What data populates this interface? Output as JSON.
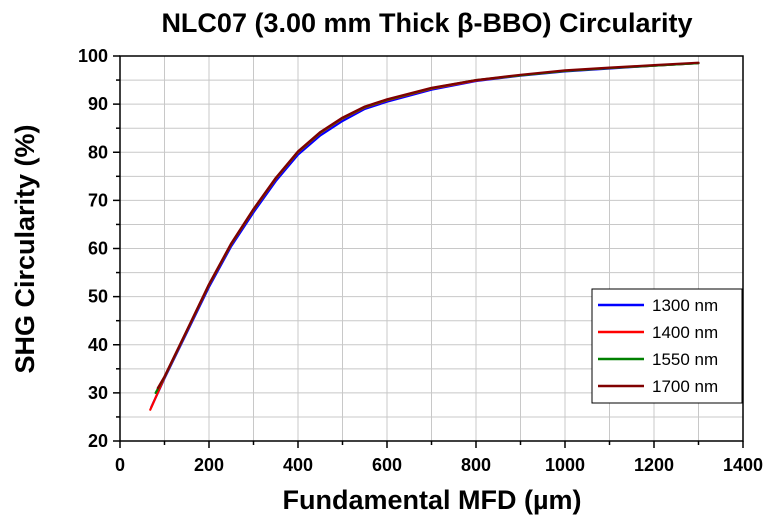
{
  "chart_data": {
    "type": "line",
    "title": "NLC07 (3.00 mm Thick β-BBO) Circularity",
    "xlabel": "Fundamental MFD (µm)",
    "ylabel": "SHG Circularity (%)",
    "xlim": [
      0,
      1400
    ],
    "ylim": [
      20,
      100
    ],
    "xticks": [
      0,
      200,
      400,
      600,
      800,
      1000,
      1200,
      1400
    ],
    "yticks": [
      20,
      30,
      40,
      50,
      60,
      70,
      80,
      90,
      100
    ],
    "grid": true,
    "legend_position": "bottom-right",
    "series": [
      {
        "name": "1300 nm",
        "color": "#0000ff",
        "x": [
          70,
          100,
          150,
          200,
          250,
          300,
          350,
          400,
          450,
          500,
          550,
          600,
          700,
          800,
          900,
          1000,
          1100,
          1200,
          1300
        ],
        "y": [
          27.0,
          33.0,
          42.5,
          52.0,
          60.5,
          67.5,
          74.0,
          79.5,
          83.5,
          86.5,
          89.0,
          90.5,
          93.0,
          94.8,
          95.9,
          96.8,
          97.4,
          98.0,
          98.5
        ]
      },
      {
        "name": "1400 nm",
        "color": "#ff0000",
        "x": [
          68,
          100,
          150,
          200,
          250,
          300,
          350,
          400,
          450,
          500,
          550,
          600,
          700,
          800,
          900,
          1000,
          1100,
          1200,
          1300
        ],
        "y": [
          26.5,
          33.2,
          42.8,
          52.4,
          60.9,
          68.0,
          74.5,
          80.0,
          84.0,
          87.0,
          89.3,
          90.8,
          93.2,
          94.9,
          96.0,
          96.9,
          97.5,
          98.0,
          98.5
        ]
      },
      {
        "name": "1550 nm",
        "color": "#008000",
        "x": [
          80,
          100,
          150,
          200,
          250,
          300,
          350,
          400,
          450,
          500,
          550,
          600,
          700,
          800,
          900,
          1000,
          1100,
          1200,
          1300
        ],
        "y": [
          30.0,
          33.3,
          42.9,
          52.5,
          61.0,
          68.1,
          74.6,
          80.1,
          84.1,
          87.1,
          89.4,
          90.9,
          93.3,
          95.0,
          96.0,
          96.9,
          97.5,
          98.0,
          98.5
        ]
      },
      {
        "name": "1700 nm",
        "color": "#800000",
        "x": [
          85,
          100,
          150,
          200,
          250,
          300,
          350,
          400,
          450,
          500,
          550,
          600,
          700,
          800,
          900,
          1000,
          1100,
          1200,
          1300
        ],
        "y": [
          31.0,
          33.4,
          43.0,
          52.6,
          61.1,
          68.2,
          74.7,
          80.2,
          84.2,
          87.2,
          89.5,
          91.0,
          93.4,
          95.0,
          96.1,
          97.0,
          97.6,
          98.1,
          98.6
        ]
      }
    ]
  }
}
